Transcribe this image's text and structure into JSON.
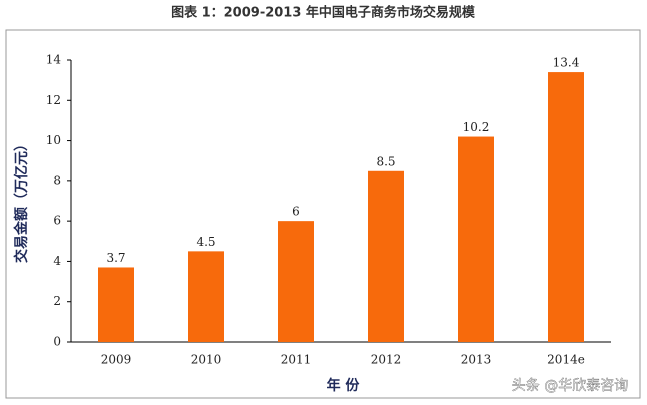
{
  "chart_data": {
    "type": "bar",
    "title": "图表 1：2009-2013 年中国电子商务市场交易规模",
    "y_label": "交易金额（万亿元）",
    "x_label": "年 份",
    "categories": [
      "2009",
      "2010",
      "2011",
      "2012",
      "2013",
      "2014e"
    ],
    "values": [
      3.7,
      4.5,
      6,
      8.5,
      10.2,
      13.4
    ],
    "color": "#f76a0c",
    "ylim": [
      0,
      14
    ],
    "yticks": [
      0,
      2,
      4,
      6,
      8,
      10,
      12,
      14
    ],
    "grid": false,
    "watermark": "头条 @华欣泰咨询"
  }
}
